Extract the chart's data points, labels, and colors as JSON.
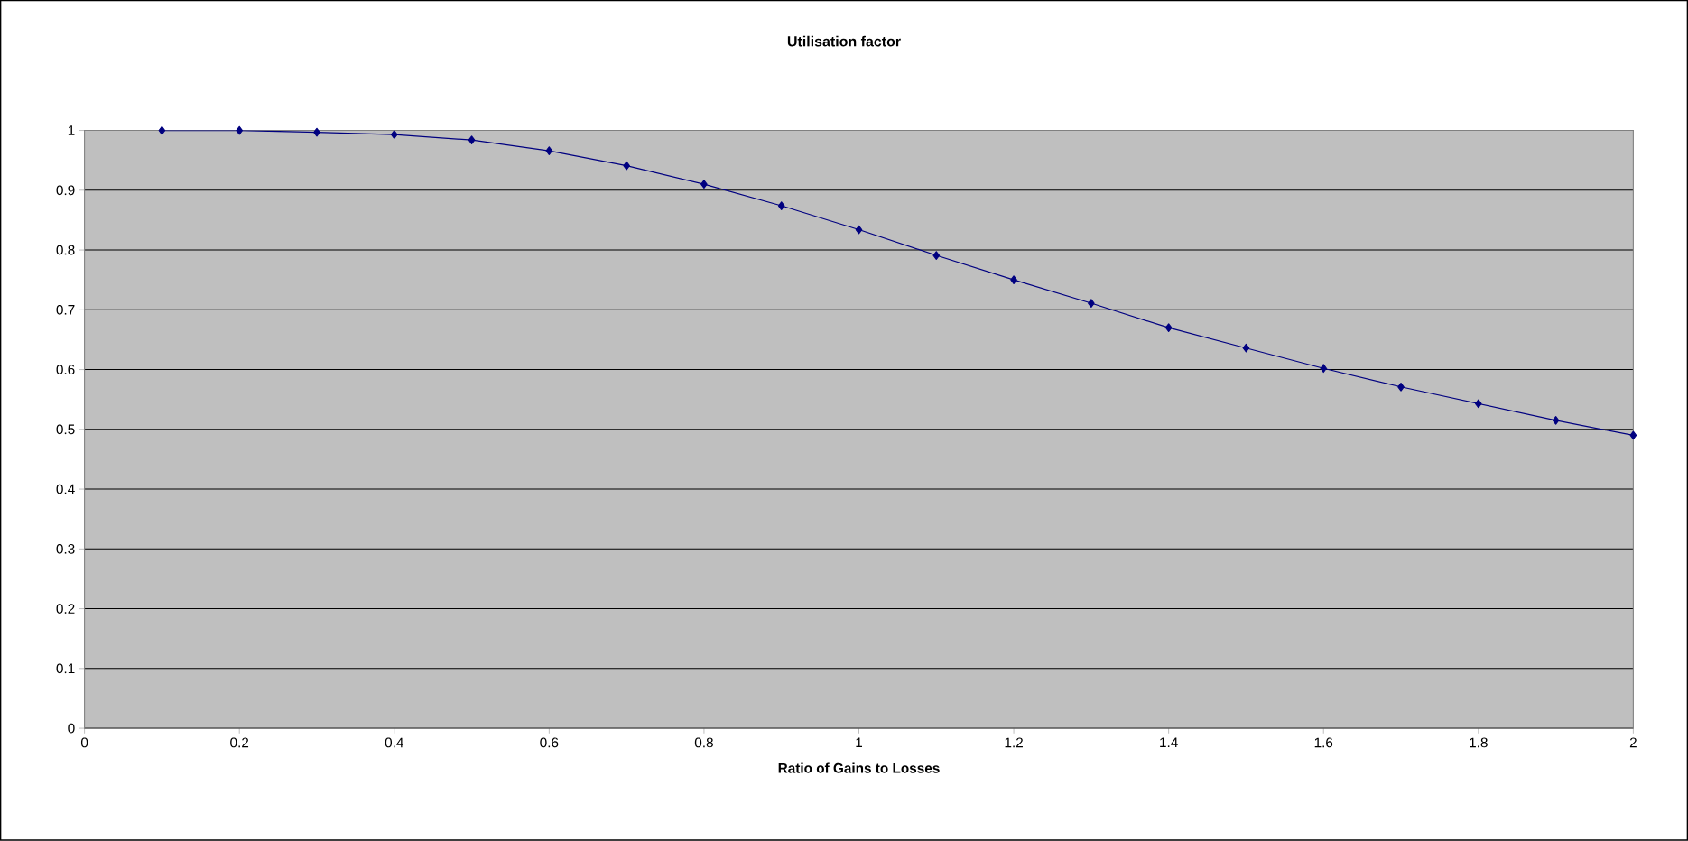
{
  "chart_data": {
    "type": "line",
    "title": "Utilisation factor",
    "xlabel": "Ratio of Gains to Losses",
    "x": [
      0.1,
      0.2,
      0.3,
      0.4,
      0.5,
      0.6,
      0.7,
      0.8,
      0.9,
      1.0,
      1.1,
      1.2,
      1.3,
      1.4,
      1.5,
      1.6,
      1.7,
      1.8,
      1.9,
      2.0
    ],
    "series": [
      {
        "color": "#000080",
        "values": [
          1.0,
          1.0,
          0.997,
          0.993,
          0.984,
          0.966,
          0.941,
          0.91,
          0.874,
          0.834,
          0.791,
          0.75,
          0.711,
          0.67,
          0.636,
          0.602,
          0.571,
          0.543,
          0.515,
          0.49
        ]
      }
    ],
    "xlim": [
      0,
      2
    ],
    "ylim": [
      0,
      1
    ],
    "xticks": [
      0,
      0.2,
      0.4,
      0.6,
      0.8,
      1,
      1.2,
      1.4,
      1.6,
      1.8,
      2
    ],
    "yticks": [
      0,
      0.1,
      0.2,
      0.3,
      0.4,
      0.5,
      0.6,
      0.7,
      0.8,
      0.9,
      1
    ],
    "grid": "y",
    "marker": "diamond",
    "line_style": "solid"
  }
}
